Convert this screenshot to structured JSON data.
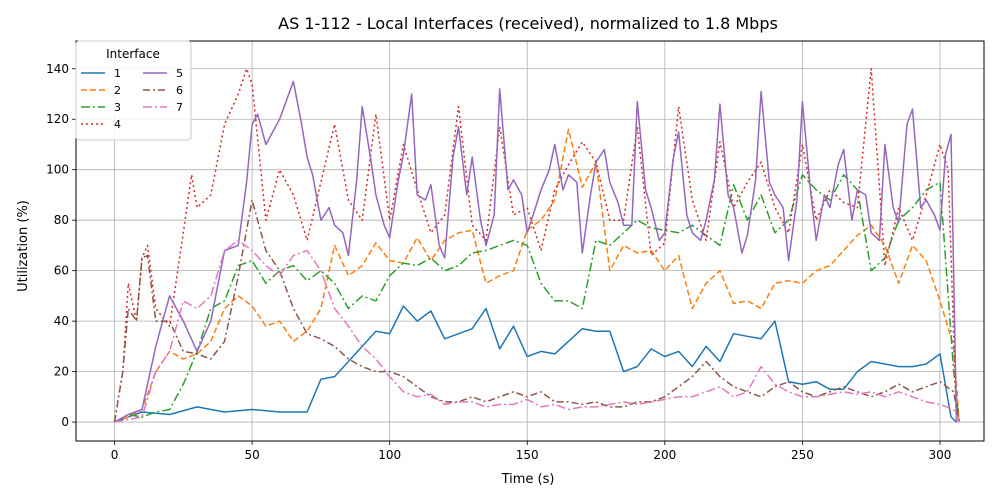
{
  "chart_data": {
    "type": "line",
    "title": "AS 1-112 - Local Interfaces (received), normalized to 1.8 Mbps",
    "xlabel": "Time (s)",
    "ylabel": "Utilization (%)",
    "xlim": [
      -14,
      316
    ],
    "ylim": [
      -7.5,
      151
    ],
    "xticks": [
      0,
      50,
      100,
      150,
      200,
      250,
      300
    ],
    "yticks": [
      0,
      20,
      40,
      60,
      80,
      100,
      120,
      140
    ],
    "grid": true,
    "legend": {
      "title": "Interface",
      "placement": "top-left",
      "columns": 2
    },
    "series": [
      {
        "name": "1",
        "color": "#1f77b4",
        "dash": "",
        "x": [
          0,
          10,
          20,
          30,
          40,
          50,
          60,
          70,
          75,
          80,
          90,
          95,
          100,
          105,
          110,
          115,
          120,
          130,
          135,
          140,
          145,
          150,
          155,
          160,
          165,
          170,
          175,
          180,
          185,
          190,
          195,
          200,
          205,
          210,
          215,
          220,
          225,
          230,
          235,
          240,
          245,
          250,
          255,
          260,
          265,
          270,
          275,
          280,
          285,
          290,
          295,
          300,
          304,
          306
        ],
        "y": [
          0,
          4,
          3,
          6,
          4,
          5,
          4,
          4,
          17,
          18,
          30,
          36,
          35,
          46,
          40,
          44,
          33,
          37,
          45,
          29,
          38,
          26,
          28,
          27,
          32,
          37,
          36,
          36,
          20,
          22,
          29,
          26,
          28,
          22,
          30,
          24,
          35,
          34,
          33,
          40,
          16,
          15,
          16,
          13,
          13,
          20,
          24,
          23,
          22,
          22,
          23,
          27,
          2,
          0
        ]
      },
      {
        "name": "2",
        "color": "#ff7f0e",
        "dash": "6,3",
        "x": [
          0,
          5,
          10,
          15,
          20,
          25,
          30,
          35,
          40,
          45,
          50,
          55,
          60,
          65,
          70,
          75,
          80,
          85,
          90,
          95,
          100,
          105,
          110,
          115,
          120,
          125,
          130,
          135,
          140,
          145,
          150,
          155,
          160,
          165,
          170,
          175,
          180,
          185,
          190,
          195,
          200,
          205,
          210,
          215,
          220,
          225,
          230,
          235,
          240,
          245,
          250,
          255,
          260,
          265,
          270,
          275,
          280,
          285,
          290,
          295,
          300,
          305,
          307
        ],
        "y": [
          0,
          2,
          5,
          20,
          28,
          25,
          27,
          32,
          45,
          50,
          46,
          38,
          40,
          32,
          36,
          45,
          70,
          58,
          62,
          71,
          64,
          63,
          73,
          64,
          72,
          75,
          76,
          55,
          58,
          60,
          76,
          80,
          88,
          116,
          93,
          103,
          60,
          70,
          67,
          68,
          60,
          66,
          45,
          55,
          60,
          47,
          48,
          45,
          55,
          56,
          55,
          60,
          62,
          68,
          74,
          78,
          70,
          55,
          70,
          64,
          48,
          30,
          0
        ]
      },
      {
        "name": "3",
        "color": "#2ca02c",
        "dash": "9,3,2,3",
        "x": [
          0,
          5,
          10,
          15,
          20,
          25,
          30,
          35,
          40,
          45,
          50,
          55,
          60,
          65,
          70,
          75,
          80,
          85,
          90,
          95,
          100,
          105,
          110,
          115,
          120,
          125,
          130,
          135,
          140,
          145,
          150,
          155,
          160,
          165,
          170,
          175,
          180,
          185,
          190,
          195,
          200,
          205,
          210,
          215,
          220,
          225,
          230,
          235,
          240,
          245,
          250,
          255,
          260,
          265,
          270,
          275,
          280,
          285,
          290,
          295,
          300,
          305,
          307
        ],
        "y": [
          0,
          3,
          2,
          4,
          5,
          15,
          28,
          45,
          48,
          62,
          64,
          55,
          60,
          62,
          56,
          60,
          55,
          45,
          50,
          48,
          58,
          63,
          62,
          65,
          60,
          62,
          67,
          68,
          70,
          72,
          70,
          55,
          48,
          48,
          45,
          72,
          70,
          75,
          80,
          77,
          76,
          75,
          78,
          74,
          70,
          94,
          80,
          90,
          75,
          80,
          98,
          92,
          88,
          98,
          92,
          60,
          65,
          80,
          85,
          92,
          95,
          20,
          0
        ]
      },
      {
        "name": "4",
        "color": "#d62728",
        "dash": "2,3",
        "x": [
          0,
          3,
          5,
          8,
          10,
          12,
          15,
          20,
          25,
          28,
          30,
          35,
          40,
          45,
          48,
          50,
          55,
          60,
          65,
          70,
          75,
          80,
          85,
          90,
          95,
          100,
          105,
          110,
          115,
          120,
          125,
          130,
          135,
          140,
          145,
          150,
          155,
          160,
          165,
          170,
          175,
          180,
          185,
          190,
          195,
          200,
          205,
          210,
          215,
          220,
          225,
          230,
          235,
          240,
          245,
          250,
          255,
          260,
          265,
          270,
          275,
          280,
          285,
          290,
          295,
          300,
          303,
          306
        ],
        "y": [
          0,
          20,
          55,
          40,
          65,
          70,
          45,
          38,
          75,
          98,
          85,
          90,
          118,
          130,
          140,
          134,
          80,
          100,
          90,
          72,
          95,
          118,
          88,
          80,
          122,
          80,
          110,
          92,
          75,
          82,
          125,
          78,
          72,
          117,
          82,
          85,
          68,
          92,
          102,
          111,
          103,
          80,
          80,
          117,
          66,
          71,
          125,
          88,
          72,
          111,
          85,
          95,
          103,
          85,
          75,
          110,
          80,
          92,
          87,
          85,
          140,
          62,
          85,
          72,
          90,
          110,
          100,
          0
        ]
      },
      {
        "name": "5",
        "color": "#9467bd",
        "dash": "",
        "x": [
          0,
          5,
          10,
          15,
          18,
          20,
          25,
          30,
          35,
          40,
          45,
          48,
          50,
          52,
          55,
          60,
          62,
          65,
          68,
          70,
          72,
          75,
          78,
          80,
          83,
          85,
          88,
          90,
          93,
          95,
          98,
          100,
          103,
          105,
          108,
          110,
          113,
          115,
          118,
          120,
          123,
          125,
          128,
          130,
          133,
          135,
          138,
          140,
          143,
          145,
          148,
          150,
          153,
          155,
          158,
          160,
          163,
          165,
          168,
          170,
          173,
          175,
          178,
          180,
          183,
          185,
          188,
          190,
          193,
          195,
          198,
          200,
          203,
          205,
          208,
          210,
          213,
          215,
          218,
          220,
          223,
          225,
          228,
          230,
          233,
          235,
          238,
          240,
          243,
          245,
          248,
          250,
          253,
          255,
          258,
          260,
          263,
          265,
          268,
          270,
          273,
          275,
          278,
          280,
          283,
          285,
          288,
          290,
          293,
          295,
          298,
          300,
          302,
          304,
          306
        ],
        "y": [
          0,
          3,
          5,
          30,
          42,
          50,
          40,
          28,
          40,
          68,
          70,
          95,
          118,
          122,
          110,
          120,
          126,
          135,
          118,
          105,
          98,
          80,
          85,
          78,
          75,
          66,
          96,
          125,
          105,
          90,
          78,
          73,
          95,
          106,
          130,
          90,
          88,
          94,
          70,
          65,
          105,
          117,
          90,
          105,
          80,
          70,
          82,
          132,
          92,
          96,
          90,
          75,
          85,
          92,
          100,
          110,
          92,
          98,
          95,
          67,
          90,
          103,
          108,
          95,
          87,
          78,
          78,
          127,
          92,
          85,
          72,
          75,
          104,
          115,
          82,
          75,
          72,
          80,
          96,
          126,
          90,
          85,
          67,
          74,
          96,
          131,
          95,
          90,
          85,
          64,
          88,
          127,
          91,
          72,
          90,
          85,
          102,
          108,
          80,
          92,
          90,
          75,
          72,
          110,
          85,
          79,
          118,
          124,
          85,
          88,
          82,
          76,
          106,
          114,
          0
        ]
      },
      {
        "name": "6",
        "color": "#8c564b",
        "dash": "7,3,2,3",
        "x": [
          0,
          3,
          5,
          8,
          10,
          12,
          15,
          20,
          25,
          30,
          35,
          40,
          45,
          50,
          55,
          60,
          65,
          70,
          75,
          80,
          85,
          90,
          95,
          100,
          105,
          110,
          115,
          120,
          125,
          130,
          135,
          140,
          145,
          150,
          155,
          160,
          165,
          170,
          175,
          180,
          185,
          190,
          195,
          200,
          205,
          210,
          215,
          220,
          225,
          230,
          235,
          240,
          245,
          250,
          255,
          260,
          265,
          270,
          275,
          280,
          285,
          290,
          295,
          300,
          305,
          307
        ],
        "y": [
          0,
          20,
          45,
          40,
          65,
          66,
          40,
          40,
          28,
          27,
          25,
          32,
          58,
          88,
          68,
          60,
          45,
          35,
          33,
          30,
          25,
          22,
          20,
          20,
          18,
          14,
          10,
          8,
          8,
          10,
          8,
          10,
          12,
          10,
          12,
          8,
          8,
          7,
          8,
          6,
          6,
          8,
          8,
          10,
          14,
          18,
          24,
          18,
          14,
          12,
          10,
          14,
          16,
          12,
          10,
          12,
          14,
          12,
          10,
          12,
          15,
          12,
          14,
          16,
          12,
          0
        ]
      },
      {
        "name": "7",
        "color": "#e377c2",
        "dash": "9,3,2,3",
        "x": [
          0,
          5,
          10,
          15,
          20,
          25,
          30,
          35,
          40,
          45,
          50,
          55,
          60,
          65,
          70,
          75,
          80,
          85,
          90,
          95,
          100,
          105,
          110,
          115,
          120,
          125,
          130,
          135,
          140,
          145,
          150,
          155,
          160,
          165,
          170,
          175,
          180,
          185,
          190,
          195,
          200,
          205,
          210,
          215,
          220,
          225,
          230,
          235,
          240,
          245,
          250,
          255,
          260,
          265,
          270,
          275,
          280,
          285,
          290,
          295,
          300,
          305,
          307
        ],
        "y": [
          0,
          1,
          2,
          20,
          28,
          48,
          45,
          50,
          68,
          72,
          68,
          62,
          58,
          66,
          68,
          60,
          45,
          38,
          30,
          25,
          18,
          12,
          10,
          11,
          7,
          8,
          8,
          6,
          7,
          7,
          9,
          6,
          7,
          5,
          6,
          6,
          7,
          8,
          7,
          8,
          9,
          10,
          10,
          12,
          14,
          10,
          12,
          22,
          15,
          12,
          10,
          10,
          11,
          12,
          11,
          12,
          10,
          12,
          10,
          8,
          7,
          5,
          0
        ]
      }
    ]
  }
}
